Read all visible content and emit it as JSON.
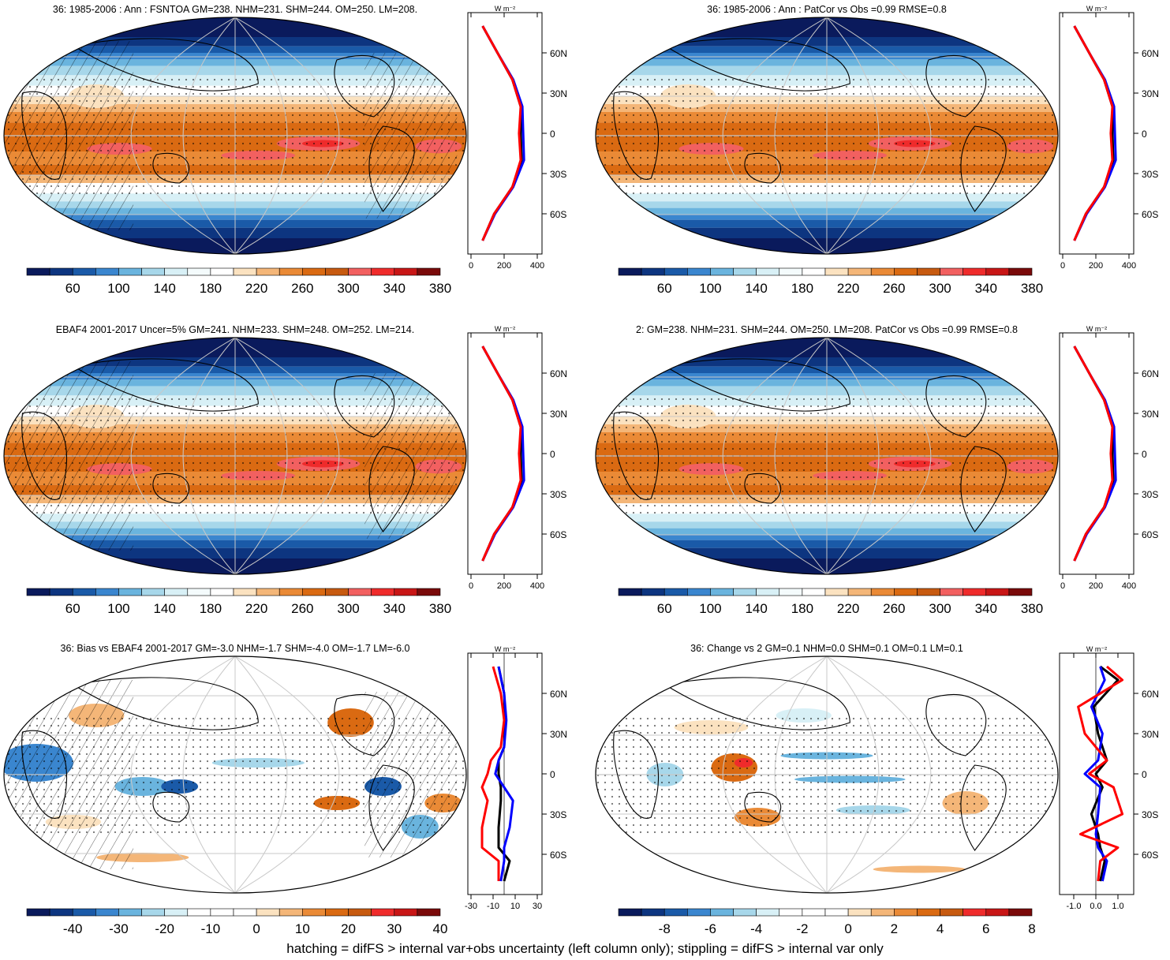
{
  "panels": [
    {
      "title": "36: 1985-2006 : Ann : FSNTOA GM=238. NHM=231. SHM=244. OM=250. LM=208.",
      "hatching": true,
      "colorbar": [
        "60",
        "100",
        "140",
        "180",
        "220",
        "260",
        "300",
        "340",
        "380"
      ],
      "profile": {
        "ticks": [
          "0",
          "200",
          "400"
        ],
        "unit": "W m⁻²"
      }
    },
    {
      "title": "36: 1985-2006 : Ann : PatCor vs Obs =0.99 RMSE=0.8",
      "hatching": false,
      "colorbar": [
        "60",
        "100",
        "140",
        "180",
        "220",
        "260",
        "300",
        "340",
        "380"
      ],
      "profile": {
        "ticks": [
          "0",
          "200",
          "400"
        ],
        "unit": "W m⁻²"
      }
    },
    {
      "title": "EBAF4 2001-2017 Uncer=5% GM=241. NHM=233. SHM=248. OM=252. LM=214.",
      "hatching": true,
      "colorbar": [
        "60",
        "100",
        "140",
        "180",
        "220",
        "260",
        "300",
        "340",
        "380"
      ],
      "profile": {
        "ticks": [
          "0",
          "200",
          "400"
        ],
        "unit": "W m⁻²"
      }
    },
    {
      "title": "2: GM=238. NHM=231. SHM=244. OM=250. LM=208. PatCor vs Obs =0.99 RMSE=0.8",
      "hatching": false,
      "colorbar": [
        "60",
        "100",
        "140",
        "180",
        "220",
        "260",
        "300",
        "340",
        "380"
      ],
      "profile": {
        "ticks": [
          "0",
          "200",
          "400"
        ],
        "unit": "W m⁻²"
      }
    },
    {
      "title": "36: Bias vs EBAF4 2001-2017 GM=-3.0 NHM=-1.7 SHM=-4.0 OM=-1.7 LM=-6.0",
      "hatching": true,
      "colorbar": [
        "-40",
        "-30",
        "-20",
        "-10",
        "0",
        "10",
        "20",
        "30",
        "40"
      ],
      "profile": {
        "ticks": [
          "-30",
          "-10",
          "10",
          "30"
        ],
        "unit": "W m⁻²"
      }
    },
    {
      "title": "36: Change vs 2 GM=0.1 NHM=0.0 SHM=0.1 OM=0.1 LM=0.1",
      "hatching": false,
      "colorbar": [
        "-8",
        "-6",
        "-4",
        "-2",
        "0",
        "2",
        "4",
        "6",
        "8"
      ],
      "profile": {
        "ticks": [
          "-1.0",
          "0.0",
          "1.0"
        ],
        "unit": "W m⁻²"
      }
    }
  ],
  "lat_labels": [
    "60N",
    "30N",
    "0",
    "30S",
    "60S"
  ],
  "palette_full": [
    "#0a1a5c",
    "#0d3580",
    "#1a5aa8",
    "#3a86cf",
    "#6ab4de",
    "#a7d7ea",
    "#d8f0f6",
    "#f4fbfc",
    "#ffffff",
    "#fbe2c0",
    "#f4b678",
    "#ea8a36",
    "#da6a12",
    "#c75a10",
    "#f26060",
    "#ef2b2b",
    "#c81616",
    "#7a0a0a"
  ],
  "palette_diff": [
    "#0a1a5c",
    "#0d3580",
    "#1a5aa8",
    "#3a86cf",
    "#6ab4de",
    "#a7d7ea",
    "#d8f0f6",
    "#ffffff",
    "#ffffff",
    "#ffffff",
    "#fbe2c0",
    "#f4b678",
    "#ea8a36",
    "#da6a12",
    "#c75a10",
    "#ef2b2b",
    "#c81616",
    "#7a0a0a"
  ],
  "line_colors": {
    "model": "#ff0000",
    "obs": "#0000ff",
    "other": "#000000"
  },
  "chart_data": [
    {
      "type": "heatmap",
      "title": "36: 1985-2006 : Ann : FSNTOA GM=238. NHM=231. SHM=244. OM=250. LM=208.",
      "zonal_mean_profile": {
        "lat": [
          80,
          60,
          40,
          20,
          0,
          -20,
          -40,
          -60,
          -80
        ],
        "model": [
          70,
          160,
          250,
          300,
          290,
          300,
          250,
          140,
          70
        ],
        "obs": [
          70,
          160,
          255,
          310,
          315,
          320,
          255,
          145,
          70
        ],
        "other": [
          70,
          160,
          250,
          300,
          300,
          305,
          250,
          140,
          70
        ],
        "xlim": [
          0,
          400
        ]
      },
      "colorbar_range": [
        40,
        400
      ]
    },
    {
      "type": "heatmap",
      "title": "36: 1985-2006 : Ann : PatCor vs Obs =0.99 RMSE=0.8",
      "zonal_mean_profile": {
        "lat": [
          80,
          60,
          40,
          20,
          0,
          -20,
          -40,
          -60,
          -80
        ],
        "model": [
          70,
          160,
          250,
          300,
          290,
          300,
          250,
          140,
          70
        ],
        "obs": [
          70,
          160,
          255,
          310,
          315,
          320,
          255,
          145,
          70
        ],
        "other": [
          70,
          160,
          250,
          300,
          300,
          305,
          250,
          140,
          70
        ],
        "xlim": [
          0,
          400
        ]
      },
      "colorbar_range": [
        40,
        400
      ]
    },
    {
      "type": "heatmap",
      "title": "EBAF4 2001-2017 Uncer=5% GM=241. NHM=233. SHM=248. OM=252. LM=214.",
      "zonal_mean_profile": {
        "lat": [
          80,
          60,
          40,
          20,
          0,
          -20,
          -40,
          -60,
          -80
        ],
        "model": [
          70,
          160,
          250,
          300,
          290,
          300,
          250,
          140,
          70
        ],
        "obs": [
          70,
          160,
          255,
          310,
          315,
          320,
          255,
          145,
          70
        ],
        "other": [
          70,
          160,
          250,
          300,
          300,
          305,
          250,
          140,
          70
        ],
        "xlim": [
          0,
          400
        ]
      },
      "colorbar_range": [
        40,
        400
      ]
    },
    {
      "type": "heatmap",
      "title": "2: GM=238. NHM=231. SHM=244. OM=250. LM=208. PatCor vs Obs =0.99 RMSE=0.8",
      "zonal_mean_profile": {
        "lat": [
          80,
          60,
          40,
          20,
          0,
          -20,
          -40,
          -60,
          -80
        ],
        "model": [
          70,
          160,
          250,
          300,
          290,
          300,
          250,
          140,
          70
        ],
        "obs": [
          70,
          160,
          255,
          310,
          315,
          320,
          255,
          145,
          70
        ],
        "other": [
          70,
          160,
          250,
          300,
          300,
          305,
          250,
          140,
          70
        ],
        "xlim": [
          0,
          400
        ]
      },
      "colorbar_range": [
        40,
        400
      ]
    },
    {
      "type": "heatmap",
      "title": "36: Bias vs EBAF4 2001-2017 GM=-3.0 NHM=-1.7 SHM=-4.0 OM=-1.7 LM=-6.0",
      "zonal_mean_profile": {
        "lat": [
          80,
          60,
          40,
          20,
          10,
          0,
          -10,
          -20,
          -40,
          -55,
          -65,
          -80
        ],
        "model": [
          -10,
          -3,
          0,
          -3,
          -12,
          -15,
          -20,
          -15,
          -20,
          -20,
          -5,
          -5
        ],
        "obs": [
          -5,
          0,
          2,
          0,
          -5,
          -8,
          0,
          8,
          5,
          0,
          0,
          -3
        ],
        "other": [
          -5,
          0,
          1,
          0,
          -5,
          -5,
          -3,
          -3,
          -5,
          -5,
          5,
          0
        ],
        "xlim": [
          -30,
          30
        ]
      },
      "colorbar_range": [
        -45,
        45
      ]
    },
    {
      "type": "heatmap",
      "title": "36: Change vs 2 GM=0.1 NHM=0.0 SHM=0.1 OM=0.1 LM=0.1",
      "zonal_mean_profile": {
        "lat": [
          80,
          70,
          50,
          30,
          10,
          0,
          -10,
          -30,
          -45,
          -55,
          -65,
          -80
        ],
        "model": [
          0.5,
          1.2,
          -0.8,
          -0.5,
          0.5,
          -0.3,
          0.8,
          1.2,
          -0.7,
          1.0,
          0.2,
          0.1
        ],
        "obs": [
          0.2,
          0.4,
          -0.2,
          0.3,
          0.1,
          -0.5,
          0.2,
          0.1,
          0.0,
          0.1,
          0.5,
          0.3
        ],
        "other": [
          0.2,
          1.0,
          -0.1,
          0.1,
          0.5,
          0.0,
          0.3,
          -0.2,
          0.1,
          0.2,
          0.4,
          0.2
        ],
        "xlim": [
          -1.5,
          1.5
        ]
      },
      "colorbar_range": [
        -9,
        9
      ]
    }
  ],
  "footer": "hatching = difFS > internal var+obs uncertainty (left column only); stippling = difFS > internal var only"
}
